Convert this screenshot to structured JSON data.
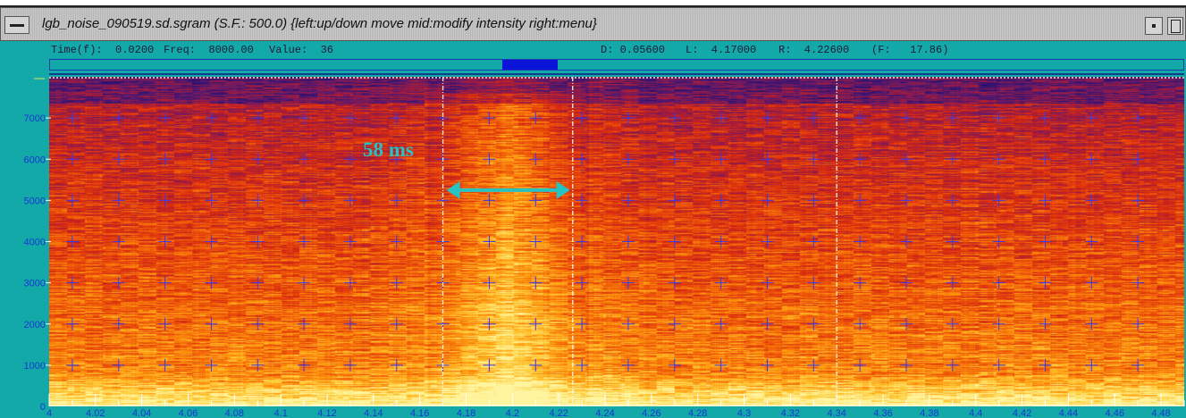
{
  "window": {
    "title": "lgb_noise_090519.sd.sgram (S.F.: 500.0) {left:up/down move  mid:modify intensity  right:menu}"
  },
  "info": {
    "time": "Time(f):  0.0200",
    "freq": "Freq:  8000.00",
    "value": "Value:  36",
    "d": "D: 0.05600",
    "l": "L:  4.17000",
    "r": "R:  4.22600",
    "f": "(F:   17.86)"
  },
  "annotation": {
    "label": "58 ms",
    "color": "#27c3c3"
  },
  "chart_data": {
    "type": "heatmap",
    "x_range": [
      4.0,
      4.49
    ],
    "y_range": [
      0,
      8000
    ],
    "x_ticks": [
      "4",
      "4.02",
      "4.04",
      "4.06",
      "4.08",
      "4.1",
      "4.12",
      "4.14",
      "4.16",
      "4.18",
      "4.2",
      "4.22",
      "4.24",
      "4.26",
      "4.28",
      "4.3",
      "4.32",
      "4.34",
      "4.36",
      "4.38",
      "4.4",
      "4.42",
      "4.44",
      "4.46",
      "4.48"
    ],
    "y_ticks": [
      "1000",
      "2000",
      "3000",
      "4000",
      "5000",
      "6000",
      "7000"
    ],
    "cursor_left": 4.17,
    "cursor_right": 4.226,
    "marker": 4.34,
    "colormap": [
      "#26106e",
      "#5a1a6e",
      "#a01a40",
      "#d82a10",
      "#f05a08",
      "#ff9a10",
      "#ffd040",
      "#fff4a0"
    ],
    "label_color": "#1638d0",
    "grid_color": "#3a3ae8"
  }
}
